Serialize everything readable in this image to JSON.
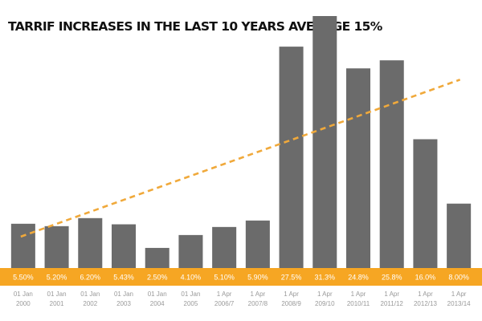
{
  "title": "TARRIF INCREASES IN THE LAST 10 YEARS AVERAGE 15%",
  "colors": {
    "bar": "#6b6b6b",
    "band": "#f6a623",
    "trend": "#f0a93b",
    "value_text": "#ffffff",
    "tick_text": "#9a9a9a"
  },
  "chart_data": {
    "type": "bar",
    "title": "TARRIF INCREASES IN THE LAST 10 YEARS AVERAGE 15%",
    "categories": [
      [
        "01 Jan",
        "2000"
      ],
      [
        "01 Jan",
        "2001"
      ],
      [
        "01 Jan",
        "2002"
      ],
      [
        "01 Jan",
        "2003"
      ],
      [
        "01 Jan",
        "2004"
      ],
      [
        "01 Jan",
        "2005"
      ],
      [
        "1 Apr",
        "2006/7"
      ],
      [
        "1 Apr",
        "2007/8"
      ],
      [
        "1 Apr",
        "2008/9"
      ],
      [
        "1 Apr",
        "209/10"
      ],
      [
        "1 Apr",
        "2010/11"
      ],
      [
        "1 Apr",
        "2011/12"
      ],
      [
        "1 Apr",
        "2012/13"
      ],
      [
        "1 Apr",
        "2013/14"
      ]
    ],
    "values": [
      5.5,
      5.2,
      6.2,
      5.43,
      2.5,
      4.1,
      5.1,
      5.9,
      27.5,
      31.3,
      24.8,
      25.8,
      16.0,
      8.0
    ],
    "value_labels": [
      "5.50%",
      "5.20%",
      "6.20%",
      "5.43%",
      "2.50%",
      "4.10%",
      "5.10%",
      "5.90%",
      "27.5%",
      "31.3%",
      "24.8%",
      "25.8%",
      "16.0%",
      "8.00%"
    ],
    "trendline": {
      "style": "dashed",
      "from": 3.9,
      "to": 23.4
    },
    "ylim": [
      0,
      31.3
    ],
    "grid": false,
    "legend": "none",
    "xlabel": "",
    "ylabel": ""
  }
}
